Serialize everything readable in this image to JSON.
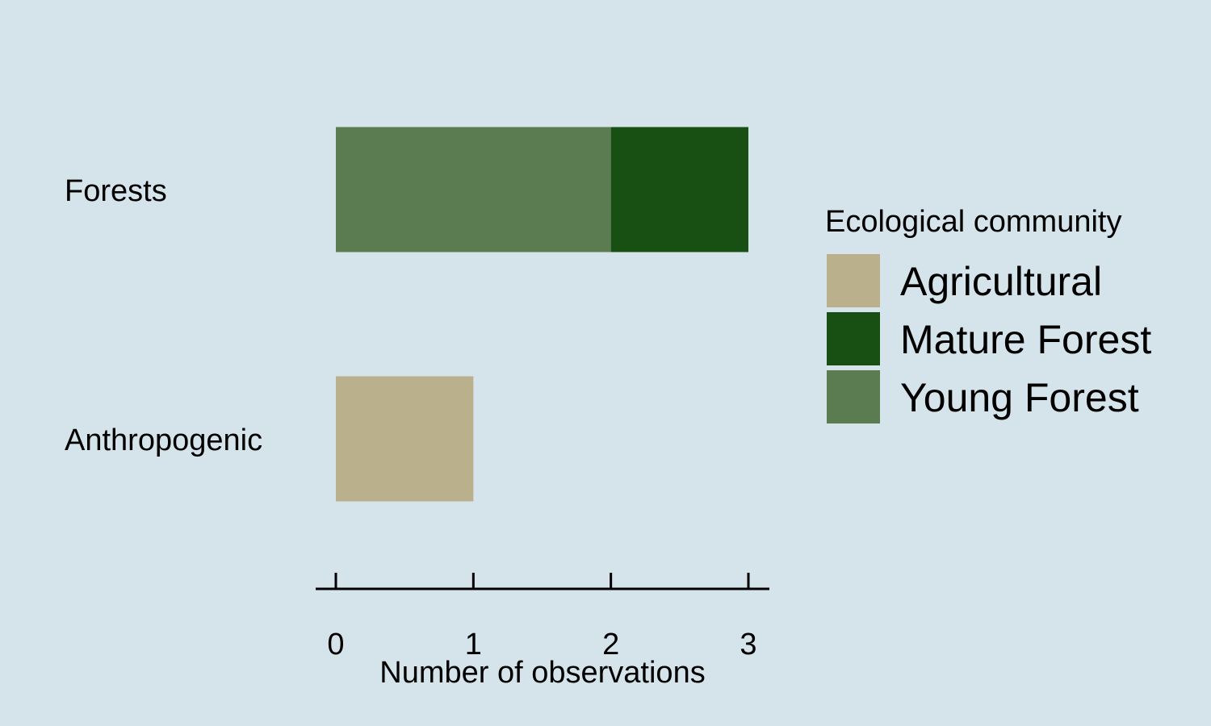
{
  "chart_data": {
    "type": "bar",
    "orientation": "horizontal",
    "stacked": true,
    "categories": [
      "Forests",
      "Anthropogenic"
    ],
    "series": [
      {
        "name": "Agricultural",
        "color": "#bab18c",
        "values": [
          0,
          1
        ]
      },
      {
        "name": "Mature Forest",
        "color": "#184f13",
        "values": [
          1,
          0
        ]
      },
      {
        "name": "Young Forest",
        "color": "#5b7b51",
        "values": [
          2,
          0
        ]
      }
    ],
    "stack_order": [
      "Young Forest",
      "Mature Forest",
      "Agricultural"
    ],
    "xlim": [
      0,
      3
    ],
    "xticks": [
      0,
      1,
      2,
      3
    ],
    "xlabel": "Number of observations",
    "ylabel": "",
    "title": "",
    "grid": false,
    "legend": {
      "title": "Ecological community",
      "position": "right"
    },
    "colors": {
      "background": "#d5e4eb",
      "axis": "#000000"
    }
  }
}
